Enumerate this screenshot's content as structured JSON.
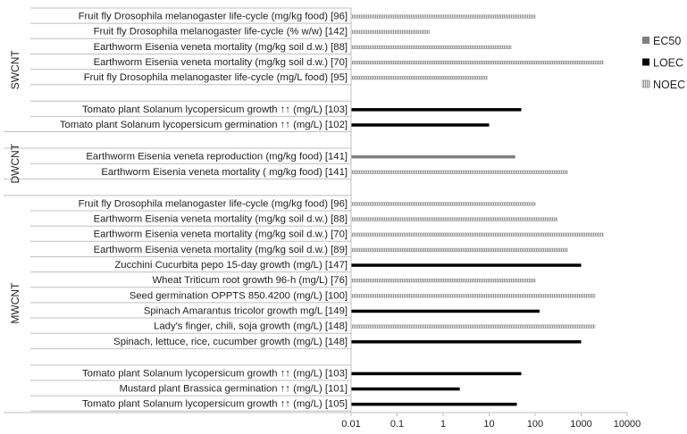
{
  "chart_data": {
    "type": "bar",
    "orientation": "horizontal",
    "x_scale": "log",
    "xlim": [
      0.01,
      10000
    ],
    "x_ticks": [
      "0.01",
      "0.1",
      "1",
      "10",
      "100",
      "1000",
      "10000"
    ],
    "grid": false,
    "legend_position": "right",
    "legend": [
      {
        "name": "EC50",
        "color": "#7f7f7f",
        "pattern": "solid"
      },
      {
        "name": "LOEC",
        "color": "#000000",
        "pattern": "solid"
      },
      {
        "name": "NOEC",
        "color": "#a6a6a6",
        "pattern": "vertical-hatch"
      }
    ],
    "groups": [
      {
        "name": "SWCNT",
        "rows": [
          {
            "label": "Fruit fly Drosophila melanogaster life-cycle (mg/kg food) [96]",
            "series": "NOEC",
            "value": 100
          },
          {
            "label": "Fruit fly Drosophila melanogaster life-cycle (% w/w) [142]",
            "series": "NOEC",
            "value": 0.5
          },
          {
            "label": "Earthworm Eisenia veneta mortality (mg/kg soil d.w.) [88]",
            "series": "NOEC",
            "value": 30
          },
          {
            "label": "Earthworm Eisenia veneta mortality (mg/kg soil d.w.) [70]",
            "series": "NOEC",
            "value": 3000
          },
          {
            "label": "Fruit fly Drosophila melanogaster life-cycle (mg/L food) [95]",
            "series": "NOEC",
            "value": 9
          },
          {
            "label": "Tomato plant Solanum lycopersicum growth ↑↑ (mg/L) [103]",
            "series": "LOEC",
            "value": 50
          },
          {
            "label": "Tomato plant Solanum lycopersicum germination ↑↑ (mg/L) [102]",
            "series": "LOEC",
            "value": 10
          }
        ]
      },
      {
        "name": "DWCNT",
        "rows": [
          {
            "label": "Earthworm Eisenia veneta reproduction (mg/kg food) [141]",
            "series": "EC50",
            "value": 37
          },
          {
            "label": "Earthworm Eisenia veneta mortality ( mg/kg food) [141]",
            "series": "NOEC",
            "value": 500
          }
        ]
      },
      {
        "name": "MWCNT",
        "rows": [
          {
            "label": "Fruit fly Drosophila melanogaster life-cycle (mg/kg food) [96]",
            "series": "NOEC",
            "value": 100
          },
          {
            "label": "Earthworm Eisenia veneta mortality (mg/kg soil d.w.) [88]",
            "series": "NOEC",
            "value": 300
          },
          {
            "label": "Earthworm Eisenia veneta mortality (mg/kg soil d.w.) [70]",
            "series": "NOEC",
            "value": 3000
          },
          {
            "label": "Earthworm Eisenia veneta mortality (mg/kg soil d.w.) [89]",
            "series": "NOEC",
            "value": 500
          },
          {
            "label": "Zucchini Cucurbita pepo 15-day growth (mg/L) [147]",
            "series": "LOEC",
            "value": 1000
          },
          {
            "label": "Wheat Triticum root growth 96-h (mg/L) [76]",
            "series": "NOEC",
            "value": 100
          },
          {
            "label": "Seed germination OPPTS 850.4200 (mg/L) [100]",
            "series": "NOEC",
            "value": 2000
          },
          {
            "label": "Spinach  Amarantus tricolor growth mg/L [149]",
            "series": "LOEC",
            "value": 125
          },
          {
            "label": "Lady's finger, chili, soja growth (mg/L) [148]",
            "series": "NOEC",
            "value": 2000
          },
          {
            "label": "Spinach, lettuce, rice, cucumber growth (mg/L) [148]",
            "series": "LOEC",
            "value": 1000
          },
          {
            "label": "Tomato plant Solanum lycopersicum growth ↑↑ (mg/L) [103]",
            "series": "LOEC",
            "value": 50
          },
          {
            "label": "Mustard plant Brassica germination ↑↑ (mg/L) [101]",
            "series": "LOEC",
            "value": 2.3
          },
          {
            "label": "Tomato plant Solanum lycopersicum growth ↑↑ (mg/L) [105]",
            "series": "LOEC",
            "value": 40
          }
        ]
      }
    ]
  }
}
